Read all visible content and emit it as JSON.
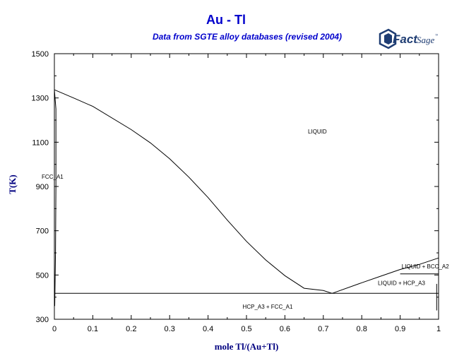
{
  "header": {
    "title": "Au - Tl",
    "subtitle": "Data from SGTE alloy databases (revised 2004)",
    "logo_text": "FactSage"
  },
  "chart_data": {
    "type": "line",
    "xlabel": "mole Tl/(Au+Tl)",
    "ylabel": "T(K)",
    "xlim": [
      0,
      1
    ],
    "ylim": [
      300,
      1500
    ],
    "xticks": [
      "0",
      "0.1",
      "0.2",
      "0.3",
      "0.4",
      "0.5",
      "0.6",
      "0.7",
      "0.8",
      "0.9",
      "1"
    ],
    "yticks": [
      "300",
      "500",
      "700",
      "900",
      "1100",
      "1300",
      "1500"
    ],
    "xtick_values": [
      0,
      0.1,
      0.2,
      0.3,
      0.4,
      0.5,
      0.6,
      0.7,
      0.8,
      0.9,
      1
    ],
    "ytick_values": [
      300,
      500,
      700,
      900,
      1100,
      1300,
      1500
    ],
    "grid": false,
    "series": [
      {
        "values_x": [
          0,
          0.05,
          0.1,
          0.2,
          0.25,
          0.3,
          0.35,
          0.4,
          0.45,
          0.5,
          0.55,
          0.6,
          0.65,
          0.7,
          0.723
        ],
        "values_y": [
          1337,
          1300,
          1262,
          1157,
          1097,
          1025,
          942,
          850,
          748,
          652,
          568,
          497,
          440,
          430,
          417
        ]
      },
      {
        "values_x": [
          0.723,
          0.8,
          0.85,
          0.9,
          0.95,
          1.0
        ],
        "values_y": [
          417,
          465,
          495,
          525,
          548,
          577
        ]
      },
      {
        "values_x": [
          0,
          0.004,
          0.004,
          0.003,
          0.001
        ],
        "values_y": [
          1337,
          1250,
          900,
          600,
          360
        ]
      },
      {
        "values_x": [
          0,
          1
        ],
        "values_y": [
          417,
          417
        ]
      },
      {
        "values_x": [
          0.9,
          1
        ],
        "values_y": [
          505,
          505
        ]
      },
      {
        "values_x": [
          0.995,
          0.995
        ],
        "values_y": [
          460,
          340
        ]
      }
    ],
    "annotations": [
      {
        "text": "LIQUID",
        "x": 0.66,
        "y": 1140
      },
      {
        "text": "FCC_A1",
        "x": -0.033,
        "y": 935
      },
      {
        "text": "LIQUID + BCC_A2",
        "x": 0.904,
        "y": 530
      },
      {
        "text": "LIQUID + HCP_A3",
        "x": 0.842,
        "y": 454
      },
      {
        "text": "HCP_A3 + FCC_A1",
        "x": 0.49,
        "y": 348
      }
    ]
  }
}
